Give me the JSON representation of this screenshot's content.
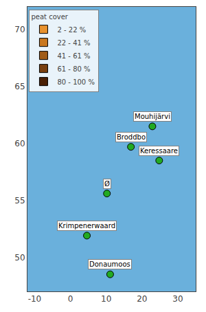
{
  "chart_data": {
    "type": "scatter",
    "x": [
      22.9,
      16.9,
      24.8,
      10.2,
      4.6,
      11.1
    ],
    "values": [
      61.5,
      59.7,
      58.5,
      55.6,
      51.9,
      48.5
    ],
    "annotations": [
      "Mouhijärvi",
      "Broddbo",
      "Keressaare",
      "Ø",
      "Krimpenerwaard",
      "Donaumoos"
    ],
    "color": "#22aa22",
    "marker": "circle",
    "background_color": "#6ab0dc",
    "xlim": [
      -12,
      35
    ],
    "xticks": [
      -10,
      0,
      10,
      20,
      30
    ],
    "ylim": [
      47,
      72
    ],
    "yticks": [
      50,
      55,
      60,
      65,
      70
    ],
    "grid": false,
    "legend": "upper left",
    "legend_title": "peat cover",
    "legend_entries": [
      {
        "name": "2 - 22 %",
        "color": "#e8922e"
      },
      {
        "name": "22 - 41 %",
        "color": "#c97820"
      },
      {
        "name": "41 - 61 %",
        "color": "#a05c18"
      },
      {
        "name": "61 - 80 %",
        "color": "#7a4010"
      },
      {
        "name": "80 - 100 %",
        "color": "#4a2005"
      }
    ]
  }
}
